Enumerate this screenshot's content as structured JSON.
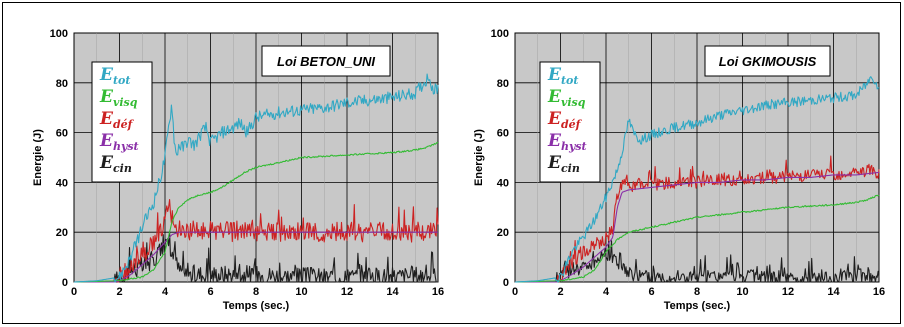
{
  "chart_data": [
    {
      "type": "line",
      "law_label": "Loi BETON_UNI",
      "xlabel": "Temps (sec.)",
      "ylabel": "Energie (J)",
      "xlim": [
        0,
        16
      ],
      "ylim": [
        0,
        100
      ],
      "xticks": [
        "0",
        "2",
        "4",
        "6",
        "8",
        "10",
        "12",
        "14",
        "16"
      ],
      "yticks": [
        "0",
        "20",
        "40",
        "60",
        "80",
        "100"
      ],
      "grid": true,
      "legend_position": "top-left",
      "series": [
        {
          "key": "tot",
          "name": "E",
          "sub": "tot",
          "color": "#32a8c4",
          "x": [
            0,
            1,
            2,
            2.5,
            3,
            3.5,
            3.8,
            4,
            4.2,
            4.3,
            4.4,
            4.5,
            4.6,
            4.8,
            5,
            5.3,
            5.6,
            5.8,
            6,
            6.5,
            7,
            7.3,
            7.6,
            8,
            8.5,
            9,
            10,
            11,
            12,
            13,
            14,
            15,
            15.4,
            15.6,
            15.8,
            16
          ],
          "y": [
            0,
            0.5,
            2,
            10,
            22,
            32,
            42,
            50,
            65,
            72,
            58,
            50,
            55,
            54,
            57,
            55,
            60,
            62,
            56,
            60,
            62,
            64,
            60,
            66,
            67,
            68,
            69,
            70,
            72,
            73,
            74,
            76,
            80,
            83,
            77,
            78
          ],
          "noise": 2.5
        },
        {
          "key": "visq",
          "name": "E",
          "sub": "visq",
          "color": "#33bb33",
          "x": [
            0,
            2,
            3,
            3.5,
            4,
            4.3,
            4.6,
            5,
            5.5,
            6,
            6.5,
            7,
            7.5,
            8,
            9,
            10,
            11,
            12,
            13,
            14,
            15,
            15.5,
            16
          ],
          "y": [
            0,
            0.5,
            2,
            5,
            12,
            24,
            30,
            33,
            35,
            36,
            38,
            41,
            44,
            46,
            48,
            50,
            50.5,
            51,
            51.5,
            52,
            53,
            54,
            56
          ],
          "noise": 0.3
        },
        {
          "key": "def",
          "name": "E",
          "sub": "déf",
          "color": "#cc2222",
          "x": [
            0,
            1.8,
            2,
            2.5,
            3,
            3.5,
            3.8,
            4,
            4.2,
            4.4,
            4.6,
            5,
            5.5,
            6,
            7,
            8,
            9,
            10,
            11,
            12,
            13,
            14,
            15,
            15.6,
            16
          ],
          "y": [
            0,
            0,
            2,
            6,
            10,
            16,
            20,
            25,
            30,
            22,
            20,
            21,
            20,
            21,
            20,
            20,
            20,
            20,
            20,
            20,
            20,
            20,
            20,
            21,
            20
          ],
          "noise": 4
        },
        {
          "key": "hyst",
          "name": "E",
          "sub": "hyst",
          "color": "#8a2fa8",
          "x": [
            0,
            1.8,
            2,
            2.5,
            3,
            3.5,
            4,
            4.3,
            4.6,
            5,
            6,
            8,
            10,
            12,
            14,
            16
          ],
          "y": [
            0,
            0,
            0.5,
            3,
            7,
            11,
            16,
            19,
            20,
            20,
            20,
            20,
            20,
            20,
            20,
            20
          ],
          "noise": 0
        },
        {
          "key": "cin",
          "name": "E",
          "sub": "cin",
          "color": "#1e1e1e",
          "x": [
            0,
            1.8,
            2,
            2.5,
            3,
            3.5,
            4,
            4.3,
            4.6,
            5,
            6,
            7,
            8,
            10,
            12,
            14,
            15.5,
            16
          ],
          "y": [
            0,
            0,
            2,
            5,
            6,
            9,
            16,
            12,
            5,
            3,
            3,
            3,
            3,
            2,
            2,
            2,
            3,
            2
          ],
          "noise": 4
        }
      ]
    },
    {
      "type": "line",
      "law_label": "Loi GKIMOUSIS",
      "xlabel": "Temps (sec.)",
      "ylabel": "Energie (J)",
      "xlim": [
        0,
        16
      ],
      "ylim": [
        0,
        100
      ],
      "xticks": [
        "0",
        "2",
        "4",
        "6",
        "8",
        "10",
        "12",
        "14",
        "16"
      ],
      "yticks": [
        "0",
        "20",
        "40",
        "60",
        "80",
        "100"
      ],
      "grid": true,
      "legend_position": "top-left",
      "series": [
        {
          "key": "tot",
          "name": "E",
          "sub": "tot",
          "color": "#32a8c4",
          "x": [
            0,
            1,
            2,
            2.5,
            3,
            3.5,
            4,
            4.5,
            4.8,
            5,
            5.2,
            5.5,
            6,
            7,
            7.5,
            8,
            9,
            10,
            11,
            12,
            13,
            14,
            15,
            15.5,
            15.7,
            16
          ],
          "y": [
            0,
            0.5,
            2,
            12,
            18,
            25,
            34,
            45,
            56,
            65,
            60,
            57,
            59,
            62,
            63,
            64,
            67,
            69,
            71,
            72,
            73,
            74,
            75,
            80,
            83,
            78
          ],
          "noise": 2
        },
        {
          "key": "visq",
          "name": "E",
          "sub": "visq",
          "color": "#33bb33",
          "x": [
            0,
            2,
            3,
            3.5,
            4,
            4.5,
            4.8,
            5,
            6,
            7,
            8,
            9,
            10,
            11,
            12,
            13,
            14,
            15,
            15.5,
            16
          ],
          "y": [
            0,
            0.5,
            2,
            5,
            12,
            17,
            19,
            20,
            22,
            24,
            26,
            27,
            28,
            29,
            30,
            30.5,
            31,
            32,
            33,
            35
          ],
          "noise": 0.3
        },
        {
          "key": "def",
          "name": "E",
          "sub": "déf",
          "color": "#cc2222",
          "x": [
            0,
            1.8,
            2,
            2.5,
            3,
            3.5,
            4,
            4.3,
            4.5,
            4.7,
            4.9,
            5,
            6,
            7,
            8,
            9,
            10,
            11,
            12,
            13,
            14,
            15,
            15.5,
            16
          ],
          "y": [
            0,
            0,
            2,
            8,
            12,
            15,
            17,
            22,
            35,
            40,
            42,
            38,
            39,
            40,
            40,
            41,
            41,
            42,
            42,
            43,
            43,
            44,
            45,
            44
          ],
          "noise": 2.5
        },
        {
          "key": "hyst",
          "name": "E",
          "sub": "hyst",
          "color": "#8a2fa8",
          "x": [
            0,
            1.8,
            2,
            2.5,
            3,
            3.5,
            4,
            4.3,
            4.5,
            4.7,
            5,
            6,
            7,
            8,
            9,
            10,
            11,
            12,
            13,
            14,
            15,
            16
          ],
          "y": [
            0,
            0,
            0.5,
            3,
            6,
            10,
            14,
            18,
            30,
            36,
            37,
            38,
            39,
            40,
            40,
            41,
            41,
            42,
            42,
            43,
            43,
            44
          ],
          "noise": 0
        },
        {
          "key": "cin",
          "name": "E",
          "sub": "cin",
          "color": "#1e1e1e",
          "x": [
            0,
            1.8,
            2,
            2.5,
            3,
            3.5,
            4,
            4.5,
            5,
            6,
            8,
            10,
            12,
            14,
            15.5,
            16
          ],
          "y": [
            0,
            0,
            3,
            5,
            6,
            8,
            12,
            8,
            3,
            2,
            2,
            2,
            1,
            1,
            3,
            2
          ],
          "noise": 3
        }
      ]
    }
  ]
}
